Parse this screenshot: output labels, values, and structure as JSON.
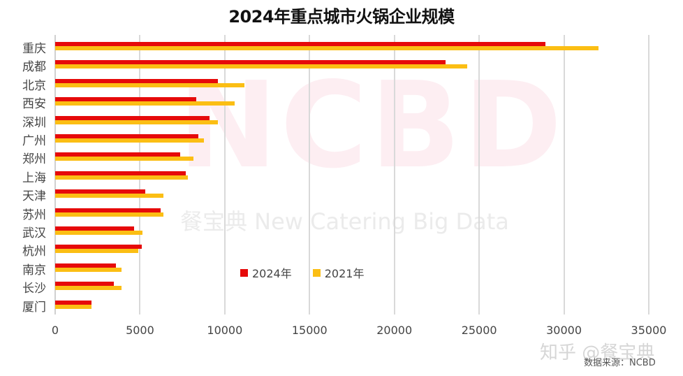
{
  "title": "2024年重点城市火锅企业规模",
  "colors": {
    "series_2024": "#e60a0a",
    "series_2021": "#fbbe14",
    "grid": "#d9d9d9"
  },
  "legend": [
    {
      "label": "2024年",
      "color": "#e60a0a"
    },
    {
      "label": "2021年",
      "color": "#fbbe14"
    }
  ],
  "x_ticks": [
    "0",
    "5000",
    "10000",
    "15000",
    "20000",
    "25000",
    "30000",
    "35000"
  ],
  "watermark": {
    "main": "NCBD",
    "sub": "餐宝典 New Catering Big Data",
    "platform": "知乎 @餐宝典"
  },
  "source": "数据来源：NCBD",
  "chart_data": {
    "type": "bar",
    "orientation": "horizontal",
    "title": "2024年重点城市火锅企业规模",
    "xlabel": "",
    "ylabel": "",
    "xlim": [
      0,
      35000
    ],
    "grid": true,
    "legend_position": "inside-center-bottom",
    "categories": [
      "重庆",
      "成都",
      "北京",
      "西安",
      "深圳",
      "广州",
      "郑州",
      "上海",
      "天津",
      "苏州",
      "武汉",
      "杭州",
      "南京",
      "长沙",
      "厦门"
    ],
    "series": [
      {
        "name": "2024年",
        "values": [
          28900,
          23000,
          9600,
          8300,
          9100,
          8450,
          7350,
          7700,
          5300,
          6200,
          4650,
          5100,
          3580,
          3460,
          2140
        ]
      },
      {
        "name": "2021年",
        "values": [
          32050,
          24300,
          11150,
          10600,
          9600,
          8780,
          8150,
          7830,
          6400,
          6400,
          5150,
          4900,
          3900,
          3900,
          2140
        ]
      }
    ]
  }
}
